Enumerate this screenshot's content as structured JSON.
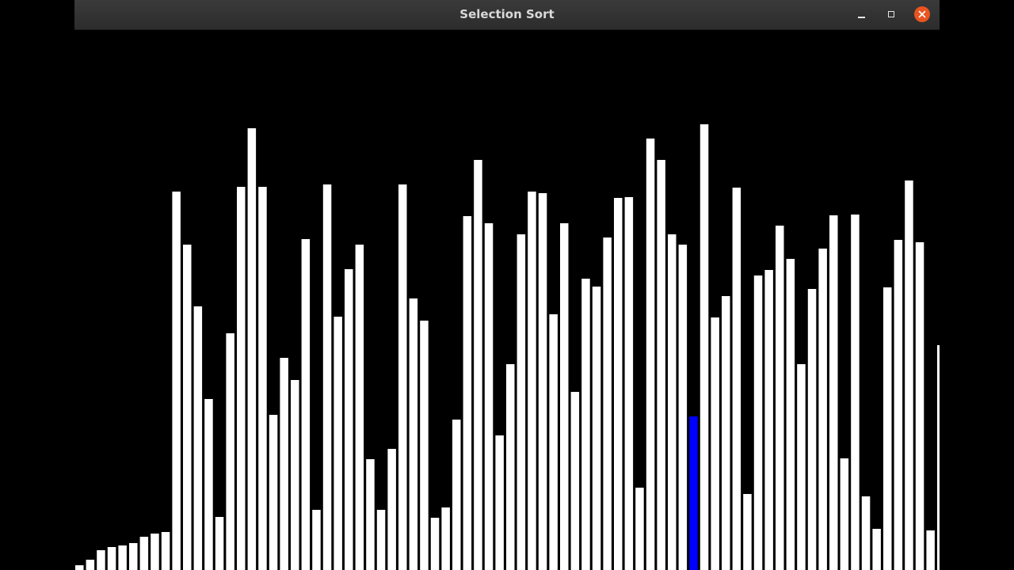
{
  "window": {
    "title": "Selection Sort",
    "buttons": {
      "minimize_icon": "minimize-icon",
      "maximize_icon": "maximize-icon",
      "close_icon": "close-icon"
    }
  },
  "colors": {
    "bar": "#ffffff",
    "highlight": "#0000ff",
    "background": "#000000",
    "close_button": "#e95420"
  },
  "bars": {
    "highlight_index": 57,
    "values": [
      6,
      13,
      25,
      29,
      31,
      34,
      42,
      46,
      48,
      478,
      411,
      333,
      216,
      67,
      299,
      484,
      558,
      484,
      196,
      268,
      240,
      418,
      76,
      487,
      320,
      380,
      411,
      140,
      76,
      153,
      487,
      343,
      315,
      66,
      79,
      190,
      447,
      518,
      438,
      170,
      260,
      424,
      478,
      476,
      323,
      438,
      225,
      368,
      358,
      420,
      470,
      471,
      104,
      545,
      518,
      424,
      411,
      194,
      563,
      319,
      346,
      483,
      96,
      372,
      379,
      435,
      393,
      260,
      355,
      406,
      448,
      141,
      449,
      93,
      52,
      357,
      417,
      492,
      414,
      50,
      284
    ]
  }
}
